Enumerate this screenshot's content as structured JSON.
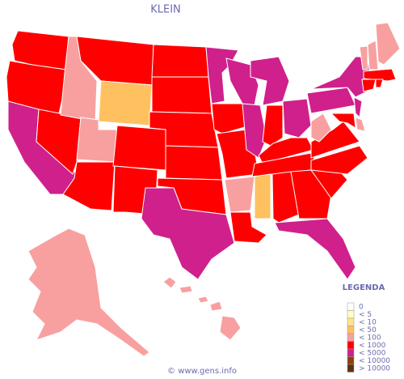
{
  "title": "KLEIN",
  "legend": {
    "title": "LEGENDA",
    "items": [
      {
        "label": "0",
        "color": "#ffffff"
      },
      {
        "label": "< 5",
        "color": "#ffffc0"
      },
      {
        "label": "< 10",
        "color": "#ffe490"
      },
      {
        "label": "< 50",
        "color": "#ffc060"
      },
      {
        "label": "< 100",
        "color": "#f8a0a0"
      },
      {
        "label": "< 1000",
        "color": "#ff0000"
      },
      {
        "label": "< 5000",
        "color": "#d0208c"
      },
      {
        "label": "< 10000",
        "color": "#904000"
      },
      {
        "label": "> 10000",
        "color": "#603010"
      }
    ]
  },
  "footer": "© www.gens.info"
}
